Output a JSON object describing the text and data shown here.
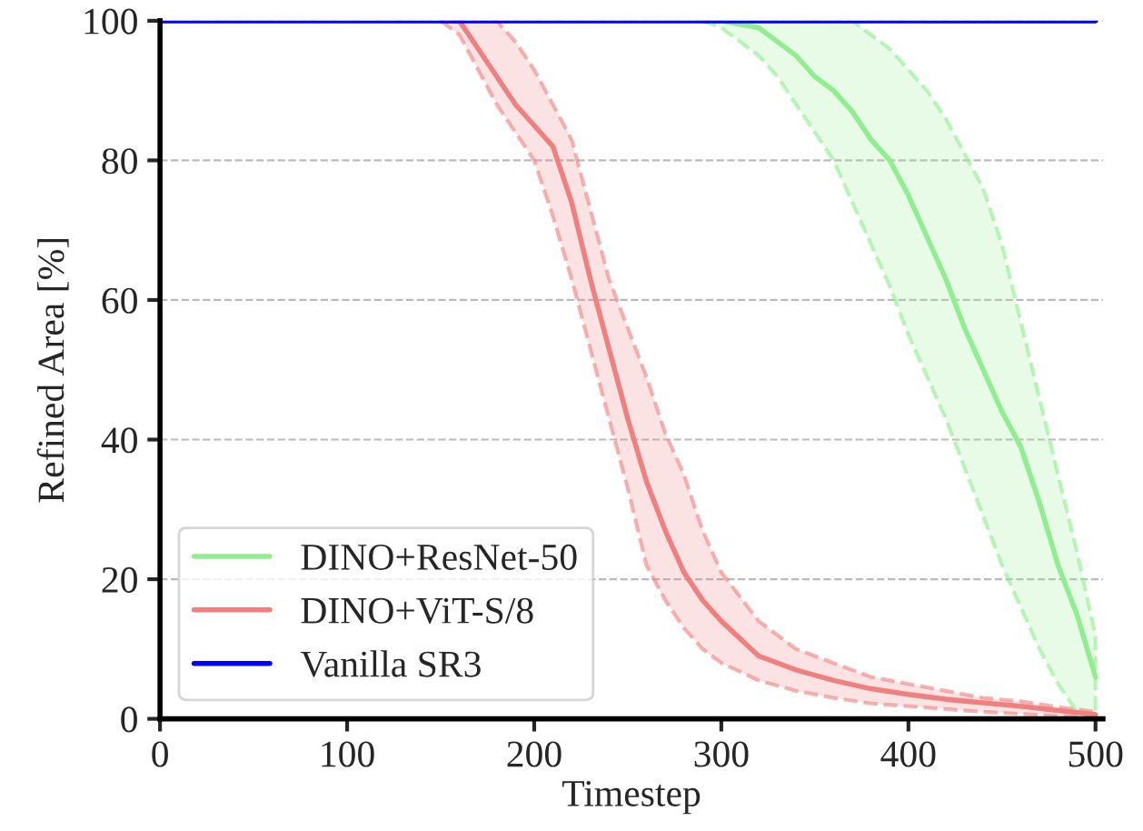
{
  "chart_data": {
    "type": "line",
    "xlabel": "Timestep",
    "ylabel": "Refined Area [%]",
    "xlim": [
      0,
      504
    ],
    "ylim": [
      0,
      100
    ],
    "xticks": [
      0,
      100,
      200,
      300,
      400,
      500
    ],
    "yticks": [
      0,
      20,
      40,
      60,
      80,
      100
    ],
    "grid": "y",
    "legend": "bottom left",
    "line_style": "solid",
    "marker": "none",
    "series": [
      {
        "name": "DINO+ResNet-50",
        "color": "#90ee90",
        "x": [
          290,
          300,
          310,
          320,
          330,
          340,
          350,
          360,
          370,
          380,
          390,
          400,
          410,
          420,
          430,
          440,
          450,
          460,
          470,
          480,
          490,
          500
        ],
        "values": [
          100,
          100,
          99.5,
          99,
          97,
          95,
          92,
          90,
          87,
          83,
          80,
          75,
          69,
          63,
          56,
          50,
          44,
          39,
          31,
          22,
          15,
          6
        ],
        "lower": [
          100,
          99,
          97,
          95,
          92,
          88,
          84,
          80,
          74,
          68,
          62,
          55,
          49,
          43,
          36,
          29,
          22,
          16,
          10,
          5,
          1,
          0.5
        ],
        "upper": [
          100,
          100,
          100,
          100,
          100,
          100,
          100,
          100,
          100,
          98,
          96,
          93,
          90,
          86,
          81,
          76,
          68,
          57,
          46,
          35,
          24,
          12
        ]
      },
      {
        "name": "DINO+ViT-S/8",
        "color": "#f08080",
        "x": [
          150,
          160,
          170,
          180,
          190,
          200,
          210,
          220,
          230,
          240,
          250,
          260,
          270,
          280,
          290,
          300,
          320,
          340,
          360,
          380,
          400,
          420,
          440,
          460,
          480,
          500
        ],
        "values": [
          100,
          100,
          96,
          92,
          88,
          85,
          82,
          74,
          63,
          53,
          43,
          34,
          27,
          21,
          17,
          14,
          9,
          7,
          5.5,
          4.3,
          3.5,
          2.8,
          2.3,
          1.8,
          1.2,
          0.6
        ],
        "lower": [
          100,
          98,
          93,
          88,
          84,
          80,
          72,
          63,
          53,
          43,
          33,
          22,
          17,
          13,
          10,
          8,
          5.5,
          4,
          3,
          2.2,
          1.8,
          1.4,
          1,
          0.7,
          0.4,
          0.2
        ],
        "upper": [
          100,
          100,
          100,
          100,
          97,
          93,
          88,
          83,
          73,
          63,
          56,
          49,
          41,
          35,
          27,
          21,
          14,
          10,
          8,
          6,
          5,
          4,
          3,
          2.5,
          1.7,
          1
        ]
      },
      {
        "name": "Vanilla SR3",
        "color": "#0000ff",
        "x": [
          0,
          500
        ],
        "values": [
          100,
          100
        ]
      }
    ]
  }
}
